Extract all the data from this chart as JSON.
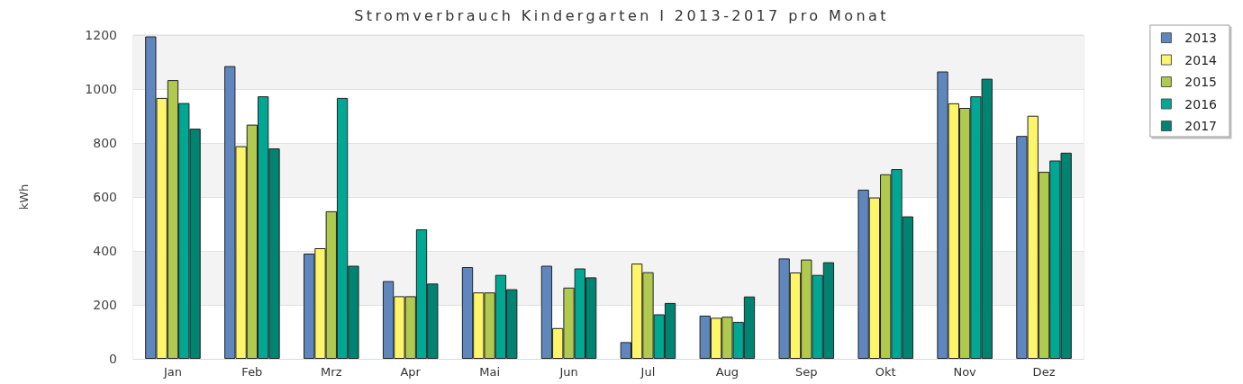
{
  "chart_data": {
    "type": "bar",
    "title": "Stromverbrauch Kindergarten I 2013-2017 pro Monat",
    "ylabel": "kWh",
    "categories": [
      "Jan",
      "Feb",
      "Mrz",
      "Apr",
      "Mai",
      "Jun",
      "Jul",
      "Aug",
      "Sep",
      "Okt",
      "Nov",
      "Dez"
    ],
    "series": [
      {
        "name": "2013",
        "color": "#5f87be",
        "values": [
          1195,
          1085,
          390,
          288,
          340,
          345,
          62,
          160,
          372,
          627,
          1065,
          826
        ]
      },
      {
        "name": "2014",
        "color": "#fff56b",
        "values": [
          967,
          788,
          410,
          232,
          246,
          114,
          353,
          152,
          320,
          598,
          947,
          901
        ]
      },
      {
        "name": "2015",
        "color": "#b0c94f",
        "values": [
          1033,
          868,
          547,
          232,
          246,
          264,
          321,
          156,
          368,
          684,
          930,
          693
        ]
      },
      {
        "name": "2016",
        "color": "#00a894",
        "values": [
          948,
          973,
          967,
          480,
          311,
          335,
          165,
          137,
          311,
          703,
          973,
          735
        ]
      },
      {
        "name": "2017",
        "color": "#008471",
        "values": [
          853,
          780,
          345,
          279,
          258,
          302,
          207,
          231,
          358,
          528,
          1038,
          764
        ]
      }
    ],
    "ylim": [
      0,
      1200
    ],
    "yticks": [
      0,
      200,
      400,
      600,
      800,
      1000,
      1200
    ],
    "grid": "y",
    "legend": "top right"
  }
}
